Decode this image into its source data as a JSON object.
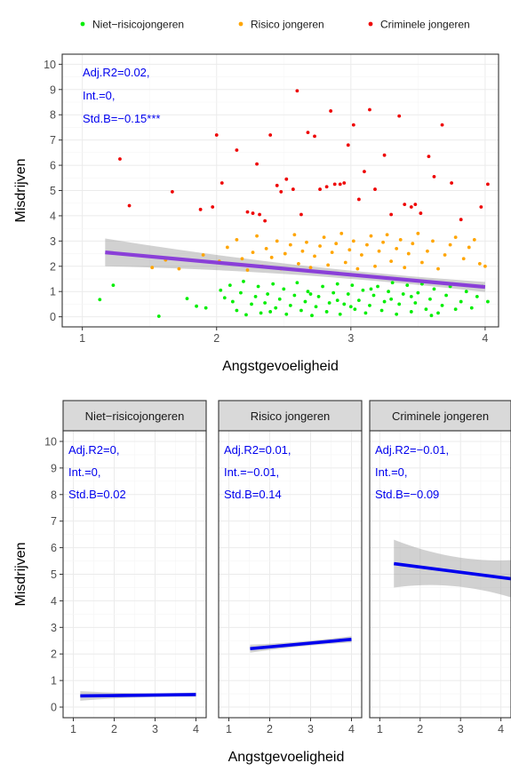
{
  "colors": {
    "niet": "#00ee00",
    "risico": "#ffa500",
    "crimineel": "#ee0000",
    "fit_overall": "#8a3fd8",
    "fit_facet": "#0000ee",
    "annotation": "#0000ee",
    "ribbon": "#999999",
    "strip": "#d9d9d9"
  },
  "chart_data": [
    {
      "type": "scatter",
      "title": "",
      "xlabel": "Angstgevoeligheid",
      "ylabel": "Misdrijven",
      "xlim": [
        0.85,
        4.1
      ],
      "ylim": [
        -0.4,
        10.4
      ],
      "x_ticks": [
        "1",
        "2",
        "3",
        "4"
      ],
      "y_ticks": [
        "0",
        "1",
        "2",
        "3",
        "4",
        "5",
        "6",
        "7",
        "8",
        "9",
        "10"
      ],
      "grid": true,
      "legend": {
        "placement": "top",
        "entries": [
          {
            "label": "Niet−risicojongeren",
            "color_key": "niet"
          },
          {
            "label": "Risico jongeren",
            "color_key": "risico"
          },
          {
            "label": "Criminele jongeren",
            "color_key": "crimineel"
          }
        ]
      },
      "annotation": [
        "Adj.R2=0.02,",
        "Int.=0,",
        "Std.B=−0.15***"
      ],
      "fit_line": {
        "x": [
          1.17,
          4.0
        ],
        "y": [
          2.55,
          1.18
        ],
        "ci_low_start": 2.0,
        "ci_high_start": 3.1,
        "ci_low_end": 1.0,
        "ci_high_end": 1.4
      },
      "series": [
        {
          "name": "Niet−risicojongeren",
          "color_key": "niet",
          "points": [
            [
              1.13,
              0.68
            ],
            [
              1.23,
              1.25
            ],
            [
              1.57,
              0.02
            ],
            [
              1.78,
              0.72
            ],
            [
              1.85,
              0.42
            ],
            [
              1.92,
              0.35
            ],
            [
              2.03,
              1.05
            ],
            [
              2.06,
              0.75
            ],
            [
              2.1,
              1.25
            ],
            [
              2.15,
              0.25
            ],
            [
              2.12,
              0.6
            ],
            [
              2.18,
              0.95
            ],
            [
              2.2,
              1.4
            ],
            [
              2.22,
              0.08
            ],
            [
              2.26,
              0.5
            ],
            [
              2.29,
              0.8
            ],
            [
              2.31,
              1.2
            ],
            [
              2.33,
              0.15
            ],
            [
              2.36,
              0.55
            ],
            [
              2.38,
              0.9
            ],
            [
              2.42,
              1.3
            ],
            [
              2.44,
              0.35
            ],
            [
              2.47,
              0.7
            ],
            [
              2.5,
              1.1
            ],
            [
              2.52,
              0.1
            ],
            [
              2.55,
              0.45
            ],
            [
              2.58,
              0.85
            ],
            [
              2.6,
              1.35
            ],
            [
              2.63,
              0.25
            ],
            [
              2.66,
              0.6
            ],
            [
              2.68,
              1.0
            ],
            [
              2.71,
              0.05
            ],
            [
              2.74,
              0.4
            ],
            [
              2.76,
              0.8
            ],
            [
              2.79,
              1.2
            ],
            [
              2.82,
              0.2
            ],
            [
              2.84,
              0.55
            ],
            [
              2.87,
              0.95
            ],
            [
              2.9,
              1.3
            ],
            [
              2.92,
              0.1
            ],
            [
              2.95,
              0.5
            ],
            [
              2.98,
              0.9
            ],
            [
              3.01,
              1.25
            ],
            [
              3.03,
              0.3
            ],
            [
              3.06,
              0.65
            ],
            [
              3.09,
              1.05
            ],
            [
              3.11,
              0.15
            ],
            [
              3.14,
              0.45
            ],
            [
              3.17,
              0.85
            ],
            [
              3.2,
              1.2
            ],
            [
              3.23,
              0.25
            ],
            [
              3.25,
              0.6
            ],
            [
              3.28,
              1.0
            ],
            [
              3.31,
              1.35
            ],
            [
              3.34,
              0.1
            ],
            [
              3.36,
              0.5
            ],
            [
              3.39,
              0.9
            ],
            [
              3.42,
              1.25
            ],
            [
              3.45,
              0.2
            ],
            [
              3.48,
              0.55
            ],
            [
              3.5,
              0.95
            ],
            [
              3.53,
              1.3
            ],
            [
              3.56,
              0.3
            ],
            [
              3.59,
              0.7
            ],
            [
              3.62,
              1.1
            ],
            [
              3.65,
              0.15
            ],
            [
              3.68,
              0.45
            ],
            [
              3.71,
              0.85
            ],
            [
              3.74,
              1.2
            ],
            [
              3.78,
              0.3
            ],
            [
              3.82,
              0.6
            ],
            [
              3.86,
              1.0
            ],
            [
              3.9,
              0.35
            ],
            [
              3.94,
              0.8
            ],
            [
              3.98,
              1.2
            ],
            [
              4.02,
              0.6
            ],
            [
              2.4,
              0.2
            ],
            [
              2.7,
              0.9
            ],
            [
              3.0,
              0.4
            ],
            [
              3.3,
              0.7
            ],
            [
              3.6,
              0.05
            ],
            [
              2.9,
              0.65
            ],
            [
              3.15,
              1.1
            ],
            [
              3.45,
              0.8
            ]
          ]
        },
        {
          "name": "Risico jongeren",
          "color_key": "risico",
          "points": [
            [
              1.52,
              1.95
            ],
            [
              1.62,
              2.25
            ],
            [
              1.72,
              1.9
            ],
            [
              1.9,
              2.45
            ],
            [
              2.02,
              2.2
            ],
            [
              2.08,
              2.75
            ],
            [
              2.15,
              3.05
            ],
            [
              2.19,
              2.3
            ],
            [
              2.23,
              1.85
            ],
            [
              2.27,
              2.55
            ],
            [
              2.3,
              3.2
            ],
            [
              2.34,
              2.0
            ],
            [
              2.37,
              2.7
            ],
            [
              2.41,
              2.35
            ],
            [
              2.45,
              3.0
            ],
            [
              2.48,
              1.9
            ],
            [
              2.51,
              2.5
            ],
            [
              2.55,
              2.85
            ],
            [
              2.58,
              3.25
            ],
            [
              2.61,
              2.1
            ],
            [
              2.64,
              2.6
            ],
            [
              2.67,
              2.95
            ],
            [
              2.7,
              1.95
            ],
            [
              2.73,
              2.4
            ],
            [
              2.77,
              2.8
            ],
            [
              2.8,
              3.15
            ],
            [
              2.83,
              2.05
            ],
            [
              2.86,
              2.55
            ],
            [
              2.89,
              2.9
            ],
            [
              2.93,
              3.3
            ],
            [
              2.96,
              2.15
            ],
            [
              2.99,
              2.65
            ],
            [
              3.02,
              3.0
            ],
            [
              3.05,
              1.9
            ],
            [
              3.08,
              2.45
            ],
            [
              3.12,
              2.85
            ],
            [
              3.15,
              3.2
            ],
            [
              3.18,
              2.0
            ],
            [
              3.21,
              2.6
            ],
            [
              3.24,
              2.95
            ],
            [
              3.27,
              3.25
            ],
            [
              3.3,
              2.2
            ],
            [
              3.34,
              2.7
            ],
            [
              3.37,
              3.05
            ],
            [
              3.4,
              1.95
            ],
            [
              3.43,
              2.5
            ],
            [
              3.46,
              2.9
            ],
            [
              3.5,
              3.3
            ],
            [
              3.53,
              2.15
            ],
            [
              3.57,
              2.6
            ],
            [
              3.61,
              3.0
            ],
            [
              3.65,
              1.9
            ],
            [
              3.7,
              2.45
            ],
            [
              3.74,
              2.85
            ],
            [
              3.78,
              3.15
            ],
            [
              3.84,
              2.3
            ],
            [
              3.88,
              2.75
            ],
            [
              3.92,
              3.05
            ],
            [
              3.96,
              2.1
            ],
            [
              4.0,
              2.0
            ]
          ]
        },
        {
          "name": "Criminele jongeren",
          "color_key": "crimineel",
          "points": [
            [
              1.28,
              6.25
            ],
            [
              1.35,
              4.4
            ],
            [
              1.67,
              4.95
            ],
            [
              1.88,
              4.25
            ],
            [
              1.97,
              4.35
            ],
            [
              2.0,
              7.2
            ],
            [
              2.04,
              5.3
            ],
            [
              2.15,
              6.6
            ],
            [
              2.23,
              4.15
            ],
            [
              2.27,
              4.1
            ],
            [
              2.3,
              6.05
            ],
            [
              2.32,
              4.05
            ],
            [
              2.36,
              3.8
            ],
            [
              2.4,
              7.2
            ],
            [
              2.45,
              5.2
            ],
            [
              2.48,
              4.95
            ],
            [
              2.52,
              5.45
            ],
            [
              2.57,
              5.05
            ],
            [
              2.6,
              8.95
            ],
            [
              2.63,
              4.05
            ],
            [
              2.68,
              7.3
            ],
            [
              2.73,
              7.15
            ],
            [
              2.77,
              5.05
            ],
            [
              2.82,
              5.15
            ],
            [
              2.85,
              8.15
            ],
            [
              2.88,
              5.25
            ],
            [
              2.92,
              5.25
            ],
            [
              2.95,
              5.3
            ],
            [
              2.98,
              6.8
            ],
            [
              3.02,
              7.6
            ],
            [
              3.06,
              4.65
            ],
            [
              3.1,
              5.75
            ],
            [
              3.14,
              8.2
            ],
            [
              3.18,
              5.05
            ],
            [
              3.25,
              6.4
            ],
            [
              3.3,
              4.05
            ],
            [
              3.36,
              7.95
            ],
            [
              3.4,
              4.45
            ],
            [
              3.45,
              4.35
            ],
            [
              3.48,
              4.45
            ],
            [
              3.52,
              4.1
            ],
            [
              3.58,
              6.35
            ],
            [
              3.62,
              5.55
            ],
            [
              3.68,
              7.6
            ],
            [
              3.75,
              5.3
            ],
            [
              3.82,
              3.85
            ],
            [
              3.97,
              4.35
            ],
            [
              4.02,
              5.25
            ]
          ]
        }
      ]
    },
    {
      "type": "line",
      "title": "",
      "xlabel": "Angstgevoeligheid",
      "ylabel": "Misdrijven",
      "xlim": [
        0.75,
        4.25
      ],
      "ylim": [
        -0.4,
        10.4
      ],
      "x_ticks": [
        "1",
        "2",
        "3",
        "4"
      ],
      "y_ticks": [
        "0",
        "1",
        "2",
        "3",
        "4",
        "5",
        "6",
        "7",
        "8",
        "9",
        "10"
      ],
      "grid": true,
      "facets": [
        {
          "strip": "Niet−risicojongeren",
          "annotation": [
            "Adj.R2=0,",
            "Int.=0,",
            "Std.B=0.02"
          ],
          "fit_line": {
            "x": [
              1.17,
              4.0
            ],
            "y": [
              0.42,
              0.47
            ]
          },
          "ci_half_width": [
            0.18,
            0.08
          ]
        },
        {
          "strip": "Risico jongeren",
          "annotation": [
            "Adj.R2=0.01,",
            "Int.=−0.01,",
            "Std.B=0.14"
          ],
          "fit_line": {
            "x": [
              1.52,
              4.0
            ],
            "y": [
              2.2,
              2.55
            ]
          },
          "ci_half_width": [
            0.15,
            0.12
          ]
        },
        {
          "strip": "Criminele jongeren",
          "annotation": [
            "Adj.R2=−0.01,",
            "Int.=0,",
            "Std.B=−0.09"
          ],
          "fit_line": {
            "x": [
              1.35,
              4.25
            ],
            "y": [
              5.4,
              4.83
            ]
          },
          "ci_half_width": [
            0.9,
            0.7
          ]
        }
      ]
    }
  ]
}
